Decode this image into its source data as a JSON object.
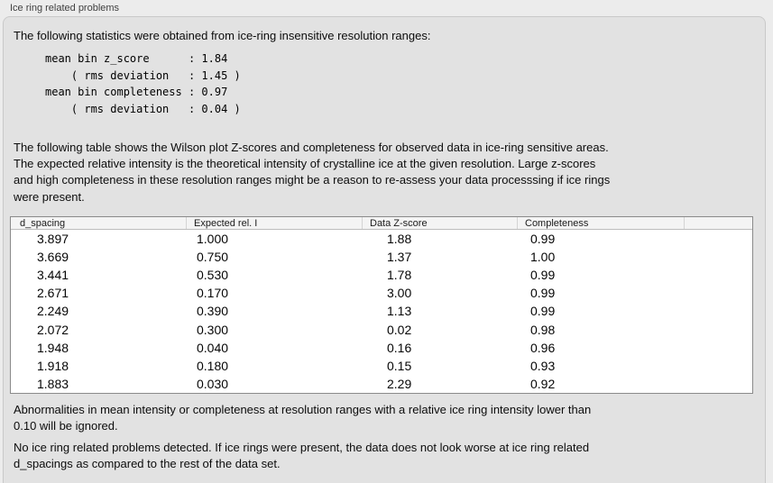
{
  "panel": {
    "title": "Ice ring related problems",
    "intro": "The following statistics were obtained from ice-ring insensitive resolution ranges:",
    "stats_block": "mean bin z_score      : 1.84\n    ( rms deviation   : 1.45 )\nmean bin completeness : 0.97\n    ( rms deviation   : 0.04 )",
    "stats": {
      "mean_bin_z_score": "1.84",
      "z_score_rms_deviation": "1.45",
      "mean_bin_completeness": "0.97",
      "completeness_rms_deviation": "0.04"
    },
    "table_note": "The following table shows the Wilson plot Z-scores and completeness for observed data in ice-ring sensitive areas.\nThe expected relative intensity is the theoretical intensity of crystalline ice at the given resolution. Large z-scores\nand high completeness in these resolution ranges might be a reason to re-assess your data processsing if ice rings\nwere present.",
    "ignore_note": "Abnormalities in mean intensity or completeness at resolution ranges with a relative ice ring intensity lower than\n0.10 will be ignored.",
    "conclusion": "No ice ring related problems detected. If ice rings were present, the data does not look worse at ice ring related\nd_spacings as compared to the rest of the data set."
  },
  "table": {
    "columns": [
      "d_spacing",
      "Expected rel. I",
      "Data Z-score",
      "Completeness"
    ],
    "rows": [
      [
        "3.897",
        "1.000",
        "1.88",
        "0.99"
      ],
      [
        "3.669",
        "0.750",
        "1.37",
        "1.00"
      ],
      [
        "3.441",
        "0.530",
        "1.78",
        "0.99"
      ],
      [
        "2.671",
        "0.170",
        "3.00",
        "0.99"
      ],
      [
        "2.249",
        "0.390",
        "1.13",
        "0.99"
      ],
      [
        "2.072",
        "0.300",
        "0.02",
        "0.98"
      ],
      [
        "1.948",
        "0.040",
        "0.16",
        "0.96"
      ],
      [
        "1.918",
        "0.180",
        "0.15",
        "0.93"
      ],
      [
        "1.883",
        "0.030",
        "2.29",
        "0.92"
      ]
    ]
  },
  "colors": {
    "page_bg": "#ececec",
    "panel_bg": "#e2e2e2",
    "table_bg": "#ffffff",
    "table_header_bg": "#f4f4f4",
    "table_border": "#8a8a8a"
  }
}
